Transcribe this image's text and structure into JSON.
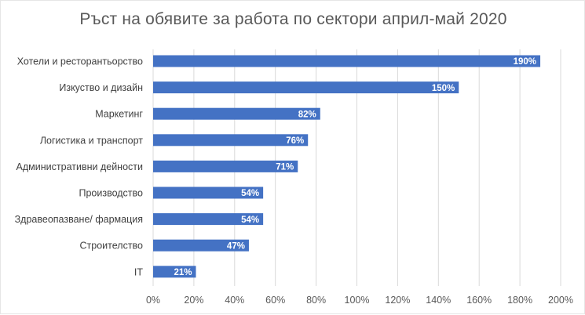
{
  "chart_data": {
    "type": "bar",
    "orientation": "horizontal",
    "title": "Ръст на обявите за работа по сектори април-май 2020",
    "categories": [
      "Хотели и ресторантьорство",
      "Изкуство и дизайн",
      "Маркетинг",
      "Логистика и транспорт",
      "Административни дейности",
      "Производство",
      "Здравеопазване/ фармация",
      "Строителство",
      "IT"
    ],
    "values": [
      190,
      150,
      82,
      76,
      71,
      54,
      54,
      47,
      21
    ],
    "data_labels": [
      "190%",
      "150%",
      "82%",
      "76%",
      "71%",
      "54%",
      "54%",
      "47%",
      "21%"
    ],
    "xlim": [
      0,
      200
    ],
    "x_ticks": [
      0,
      20,
      40,
      60,
      80,
      100,
      120,
      140,
      160,
      180,
      200
    ],
    "x_tick_labels": [
      "0%",
      "20%",
      "40%",
      "60%",
      "80%",
      "100%",
      "120%",
      "140%",
      "160%",
      "180%",
      "200%"
    ],
    "grid": true,
    "legend": "none",
    "bar_color": "#4472c4",
    "grid_color": "#d9d9d9",
    "label_color": "#ffffff"
  }
}
